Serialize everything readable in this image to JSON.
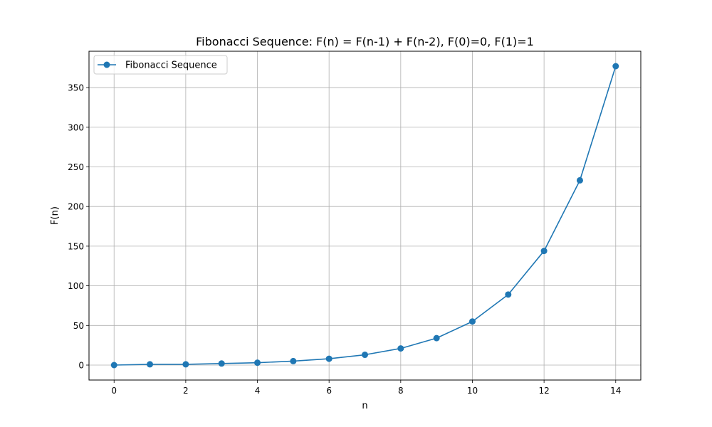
{
  "chart_data": {
    "type": "line",
    "title": "Fibonacci Sequence: F(n) = F(n-1) + F(n-2), F(0)=0, F(1)=1",
    "xlabel": "n",
    "ylabel": "F(n)",
    "x": [
      0,
      1,
      2,
      3,
      4,
      5,
      6,
      7,
      8,
      9,
      10,
      11,
      12,
      13,
      14
    ],
    "series": [
      {
        "name": "Fibonacci Sequence",
        "values": [
          0,
          1,
          1,
          2,
          3,
          5,
          8,
          13,
          21,
          34,
          55,
          89,
          144,
          233,
          377
        ],
        "color": "#1f77b4",
        "marker": "circle"
      }
    ],
    "xlim": [
      -0.7,
      14.7
    ],
    "ylim": [
      -18.85,
      395.85
    ],
    "xticks": [
      0,
      2,
      4,
      6,
      8,
      10,
      12,
      14
    ],
    "yticks": [
      0,
      50,
      100,
      150,
      200,
      250,
      300,
      350
    ],
    "grid": true,
    "legend_position": "top-left"
  }
}
